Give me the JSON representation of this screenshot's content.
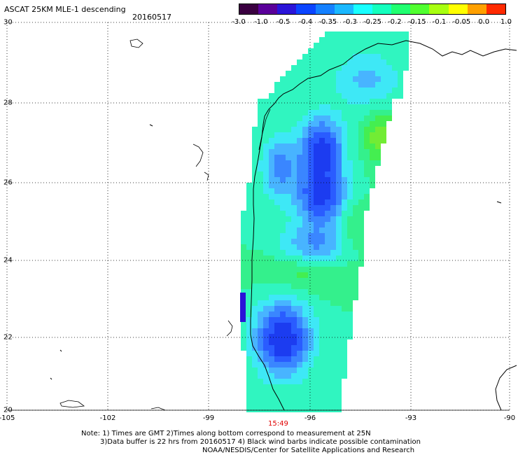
{
  "title": "ASCAT 25KM MLE-1 descending",
  "date": "20160517",
  "colorbar": {
    "colors": [
      "#3a0040",
      "#5a009a",
      "#2a14d8",
      "#0a44ff",
      "#1480ff",
      "#1ab8ff",
      "#18ffff",
      "#14ffbe",
      "#20ff70",
      "#50ff30",
      "#a8ff10",
      "#ffff00",
      "#ffa000",
      "#ff2a00"
    ],
    "ticks": [
      "-3.0",
      "-1.0",
      "-0.5",
      "-0.4",
      "-0.35",
      "-0.3",
      "-0.25",
      "-0.2",
      "-0.15",
      "-0.1",
      "-0.05",
      "0.0",
      "1.0"
    ]
  },
  "latitude_labels": [
    "30",
    "28",
    "26",
    "24",
    "22",
    "20"
  ],
  "longitude_labels": [
    "-105",
    "-102",
    "-99",
    "-96",
    "-93",
    "-90"
  ],
  "time_label": "15:49",
  "notes": [
    "Note: 1) Times are GMT 2)Times along bottom correspond to measurement at 25N",
    "3)Data buffer is 22 hrs from 20160517 4) Black wind barbs indicate possible contamination",
    "NOAA/NESDIS/Center for Satellite Applications and Research"
  ]
}
